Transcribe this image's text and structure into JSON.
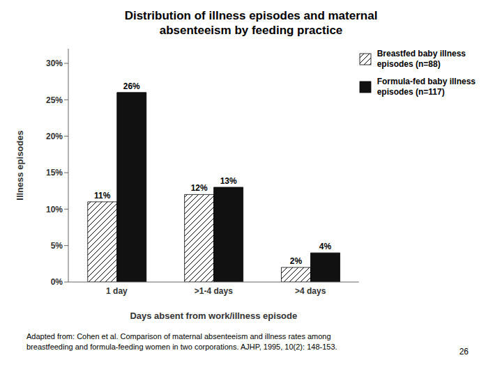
{
  "chart_data": {
    "type": "bar",
    "title": "Distribution of illness episodes and maternal\nabsenteeism by feeding practice",
    "categories": [
      "1 day",
      ">1-4 days",
      ">4 days"
    ],
    "series": [
      {
        "name": "Breastfed baby illness\nepisodes (n=88)",
        "color": "#ffffff",
        "values": [
          11,
          12,
          2
        ],
        "value_labels": [
          "11%",
          "12%",
          "2%"
        ]
      },
      {
        "name": "Formula-fed baby illness\nepisodes (n=117)",
        "color": "#111111",
        "values": [
          26,
          13,
          4
        ],
        "value_labels": [
          "26%",
          "13%",
          "4%"
        ]
      }
    ],
    "xlabel": "Days absent from work/illness episode",
    "ylabel": "Illness episodes",
    "ylim": [
      0,
      32
    ],
    "yticks": [
      {
        "value": 0,
        "label": "0%"
      },
      {
        "value": 5,
        "label": "5%"
      },
      {
        "value": 10,
        "label": "10%"
      },
      {
        "value": 15,
        "label": "15%"
      },
      {
        "value": 20,
        "label": "20%"
      },
      {
        "value": 25,
        "label": "25%"
      },
      {
        "value": 30,
        "label": "30%"
      }
    ],
    "grid": false,
    "legend": "upper right",
    "data_labels": true,
    "annotations": [
      "Adapted from: Cohen et al. Comparison of maternal absenteeism and illness rates among",
      "breastfeeding and formula-feeding women in two corporations. AJHP, 1995, 10(2): 148-153.",
      "26"
    ]
  }
}
